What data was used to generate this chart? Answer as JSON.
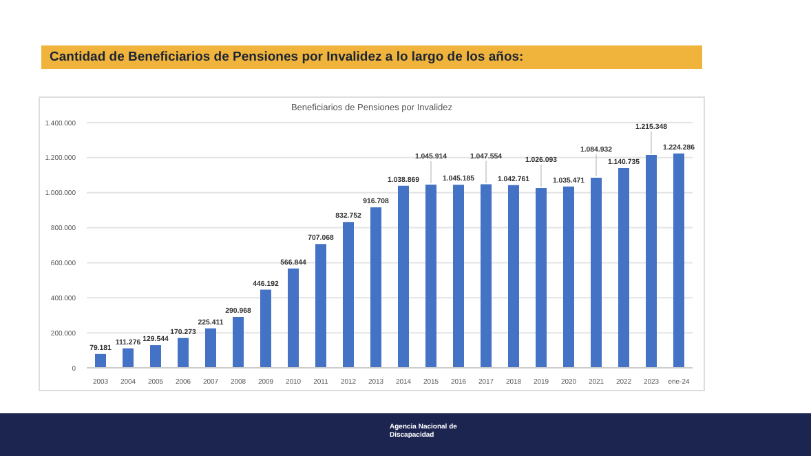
{
  "chart_data": {
    "type": "bar",
    "title": "Cantidad de Beneficiarios de Pensiones por Invalidez a lo largo de los años:",
    "subtitle": "Beneficiarios de Pensiones por Invalidez",
    "categories": [
      "2003",
      "2004",
      "2005",
      "2006",
      "2007",
      "2008",
      "2009",
      "2010",
      "2011",
      "2012",
      "2013",
      "2014",
      "2015",
      "2016",
      "2017",
      "2018",
      "2019",
      "2020",
      "2021",
      "2022",
      "2023",
      "ene-24"
    ],
    "values": [
      79181,
      111276,
      129544,
      170273,
      225411,
      290968,
      446192,
      566844,
      707068,
      832752,
      916708,
      1038869,
      1045914,
      1045185,
      1047554,
      1042761,
      1026093,
      1035471,
      1084932,
      1140735,
      1215348,
      1224286
    ],
    "value_labels": [
      "79.181",
      "111.276",
      "129.544",
      "170.273",
      "225.411",
      "290.968",
      "446.192",
      "566.844",
      "707.068",
      "832.752",
      "916.708",
      "1.038.869",
      "1.045.914",
      "1.045.185",
      "1.047.554",
      "1.042.761",
      "1.026.093",
      "1.035.471",
      "1.084.932",
      "1.140.735",
      "1.215.348",
      "1.224.286"
    ],
    "color": "#4472c4",
    "ylim": [
      0,
      1400000
    ],
    "yticks": [
      0,
      {
        "value": 200000,
        "label": "200.000"
      },
      {
        "value": 400000,
        "label": "400.000"
      },
      {
        "value": 600000,
        "label": "600.000"
      },
      {
        "value": 800000,
        "label": "800.000"
      },
      {
        "value": 1000000,
        "label": "1.000.000"
      },
      {
        "value": 1200000,
        "label": "1.200.000"
      },
      {
        "value": 1400000,
        "label": "1.400.000"
      }
    ],
    "grid": "y",
    "legend": false,
    "annotations": [
      "Agencia Nacional de Discapacidad"
    ]
  }
}
